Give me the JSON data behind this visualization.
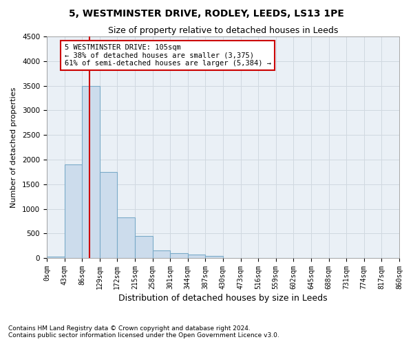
{
  "title1": "5, WESTMINSTER DRIVE, RODLEY, LEEDS, LS13 1PE",
  "title2": "Size of property relative to detached houses in Leeds",
  "xlabel": "Distribution of detached houses by size in Leeds",
  "ylabel": "Number of detached properties",
  "bar_edges": [
    0,
    43,
    86,
    129,
    172,
    215,
    258,
    301,
    344,
    387,
    430,
    473,
    516,
    559,
    602,
    645,
    688,
    731,
    774,
    817,
    860
  ],
  "bar_heights": [
    30,
    1900,
    3500,
    1750,
    830,
    450,
    155,
    95,
    65,
    50,
    0,
    0,
    0,
    0,
    0,
    0,
    0,
    0,
    0,
    0
  ],
  "bar_color": "#ccdcec",
  "bar_edge_color": "#7aaac8",
  "grid_color": "#d0d8e0",
  "vline_x": 105,
  "vline_color": "#cc0000",
  "annotation_text": "5 WESTMINSTER DRIVE: 105sqm\n← 38% of detached houses are smaller (3,375)\n61% of semi-detached houses are larger (5,384) →",
  "annotation_box_color": "#ffffff",
  "annotation_box_edge": "#cc0000",
  "ylim": [
    0,
    4500
  ],
  "yticks": [
    0,
    500,
    1000,
    1500,
    2000,
    2500,
    3000,
    3500,
    4000,
    4500
  ],
  "footer1": "Contains HM Land Registry data © Crown copyright and database right 2024.",
  "footer2": "Contains public sector information licensed under the Open Government Licence v3.0.",
  "bg_color": "#eaf0f6",
  "title1_fontsize": 10,
  "title2_fontsize": 9,
  "xlabel_fontsize": 9,
  "ylabel_fontsize": 8,
  "tick_fontsize": 7,
  "annot_fontsize": 7.5,
  "footer_fontsize": 6.5
}
